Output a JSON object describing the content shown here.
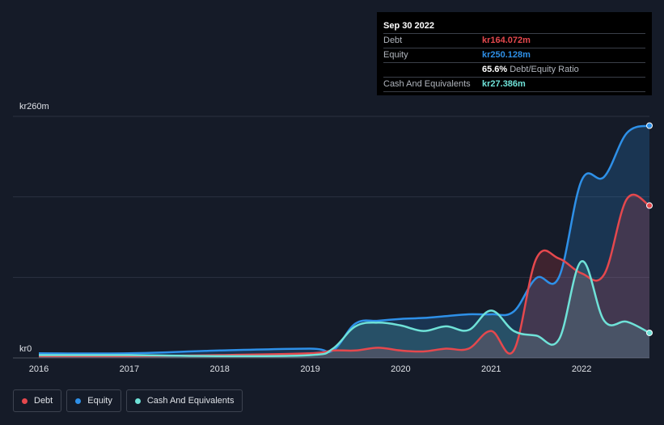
{
  "tooltip": {
    "date": "Sep 30 2022",
    "rows": [
      {
        "label": "Debt",
        "value": "kr164.072m",
        "color": "#e5484d"
      },
      {
        "label": "Equity",
        "value": "kr250.128m",
        "color": "#2e90e8"
      },
      {
        "label": "",
        "value": "65.6%",
        "suffix": "Debt/Equity Ratio"
      },
      {
        "label": "Cash And Equivalents",
        "value": "kr27.386m",
        "color": "#6fe2d8"
      }
    ]
  },
  "legend": [
    {
      "label": "Debt",
      "color": "#e5484d"
    },
    {
      "label": "Equity",
      "color": "#2e90e8"
    },
    {
      "label": "Cash And Equivalents",
      "color": "#6fe2d8"
    }
  ],
  "chart_data": {
    "type": "area",
    "y_top_label": "kr260m",
    "y_bottom_label": "kr0",
    "ylim": [
      0,
      260
    ],
    "xlim": [
      2016,
      2022.75
    ],
    "x_ticks": [
      "2016",
      "2017",
      "2018",
      "2019",
      "2020",
      "2021",
      "2022"
    ],
    "grid": true,
    "series": [
      {
        "name": "Equity",
        "color": "#2e90e8",
        "points": [
          [
            2016,
            5
          ],
          [
            2017,
            5
          ],
          [
            2018,
            8
          ],
          [
            2019,
            10
          ],
          [
            2019.25,
            8
          ],
          [
            2019.5,
            37
          ],
          [
            2019.75,
            40
          ],
          [
            2020,
            42
          ],
          [
            2020.25,
            43
          ],
          [
            2020.5,
            45
          ],
          [
            2020.75,
            47
          ],
          [
            2021,
            47
          ],
          [
            2021.25,
            50
          ],
          [
            2021.5,
            86
          ],
          [
            2021.75,
            87
          ],
          [
            2022,
            191
          ],
          [
            2022.25,
            195
          ],
          [
            2022.5,
            242
          ],
          [
            2022.75,
            250
          ]
        ]
      },
      {
        "name": "Debt",
        "color": "#e5484d",
        "points": [
          [
            2016,
            2
          ],
          [
            2017,
            2
          ],
          [
            2018,
            3
          ],
          [
            2019,
            5
          ],
          [
            2019.25,
            8
          ],
          [
            2019.5,
            8
          ],
          [
            2019.75,
            11
          ],
          [
            2020,
            8
          ],
          [
            2020.25,
            7
          ],
          [
            2020.5,
            10
          ],
          [
            2020.75,
            10
          ],
          [
            2021,
            29
          ],
          [
            2021.25,
            8
          ],
          [
            2021.5,
            107
          ],
          [
            2021.75,
            107
          ],
          [
            2022,
            91
          ],
          [
            2022.25,
            90
          ],
          [
            2022.5,
            171
          ],
          [
            2022.75,
            164
          ]
        ]
      },
      {
        "name": "Cash And Equivalents",
        "color": "#6fe2d8",
        "points": [
          [
            2016,
            3
          ],
          [
            2017,
            3
          ],
          [
            2018,
            2
          ],
          [
            2019,
            3
          ],
          [
            2019.25,
            10
          ],
          [
            2019.5,
            34
          ],
          [
            2019.75,
            38
          ],
          [
            2020,
            35
          ],
          [
            2020.25,
            29
          ],
          [
            2020.5,
            34
          ],
          [
            2020.75,
            30
          ],
          [
            2021,
            51
          ],
          [
            2021.25,
            29
          ],
          [
            2021.5,
            24
          ],
          [
            2021.75,
            20
          ],
          [
            2022,
            104
          ],
          [
            2022.25,
            40
          ],
          [
            2022.5,
            39
          ],
          [
            2022.75,
            27
          ]
        ]
      }
    ]
  }
}
